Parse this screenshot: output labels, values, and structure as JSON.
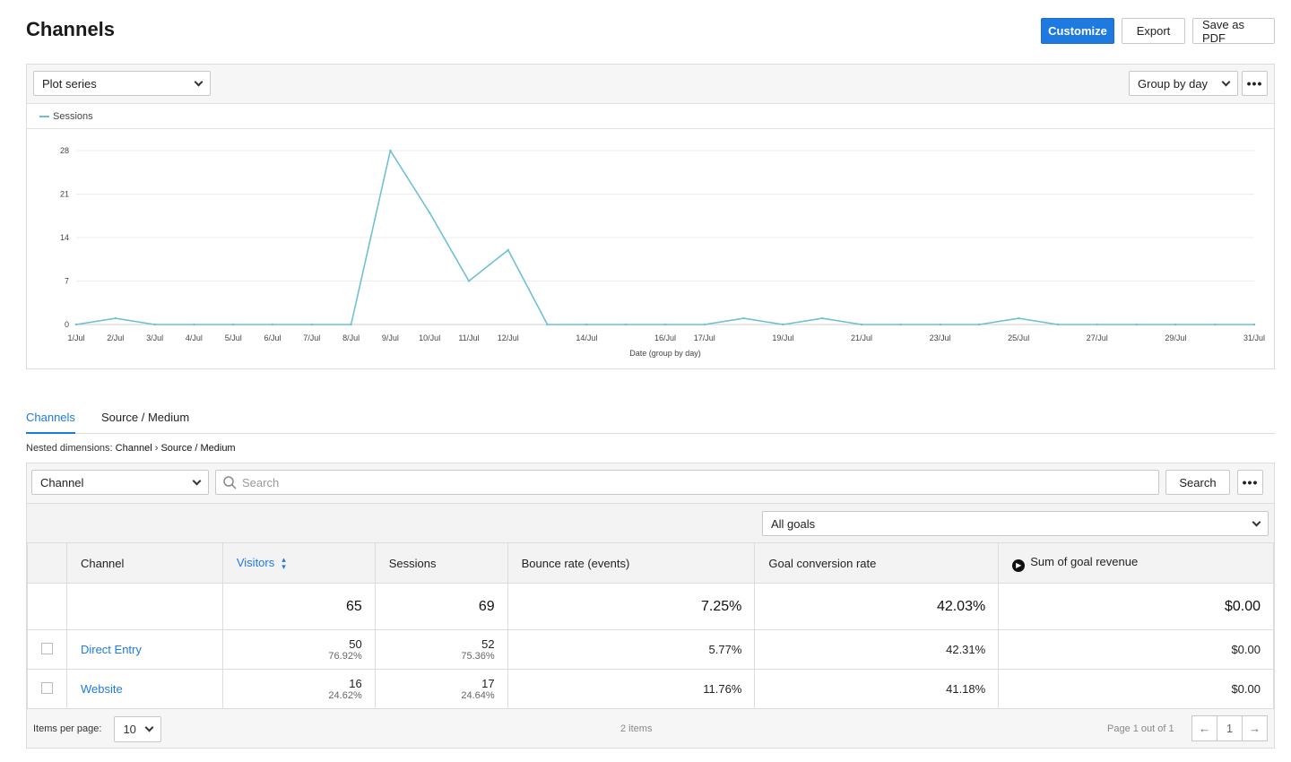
{
  "page": {
    "title": "Channels"
  },
  "actions": {
    "customize": "Customize",
    "export": "Export",
    "save_pdf": "Save as PDF"
  },
  "chart_toolbar": {
    "plot_series": "Plot series",
    "group_by": "Group by day",
    "more": "•••"
  },
  "chart_data": {
    "type": "line",
    "title": "",
    "xlabel": "Date (group by day)",
    "ylabel": "",
    "ylim": [
      0,
      28
    ],
    "yticks": [
      0,
      7,
      14,
      21,
      28
    ],
    "grid": true,
    "legend": "top-left",
    "x": [
      "1/Jul",
      "2/Jul",
      "3/Jul",
      "4/Jul",
      "5/Jul",
      "6/Jul",
      "7/Jul",
      "8/Jul",
      "9/Jul",
      "10/Jul",
      "11/Jul",
      "12/Jul",
      "13/Jul",
      "14/Jul",
      "15/Jul",
      "16/Jul",
      "17/Jul",
      "18/Jul",
      "19/Jul",
      "20/Jul",
      "21/Jul",
      "22/Jul",
      "23/Jul",
      "24/Jul",
      "25/Jul",
      "26/Jul",
      "27/Jul",
      "28/Jul",
      "29/Jul",
      "30/Jul",
      "31/Jul"
    ],
    "xtick_labels": [
      "1/Jul",
      "2/Jul",
      "3/Jul",
      "4/Jul",
      "5/Jul",
      "6/Jul",
      "7/Jul",
      "8/Jul",
      "9/Jul",
      "10/Jul",
      "11/Jul",
      "12/Jul",
      "",
      "14/Jul",
      "",
      "16/Jul",
      "17/Jul",
      "",
      "19/Jul",
      "",
      "21/Jul",
      "",
      "23/Jul",
      "",
      "25/Jul",
      "",
      "27/Jul",
      "",
      "29/Jul",
      "",
      "31/Jul"
    ],
    "series": [
      {
        "name": "Sessions",
        "color": "#6ec1d3",
        "values": [
          0,
          1,
          0,
          0,
          0,
          0,
          0,
          0,
          28,
          18,
          7,
          12,
          0,
          0,
          0,
          0,
          0,
          1,
          0,
          1,
          0,
          0,
          0,
          0,
          1,
          0,
          0,
          0,
          0,
          0,
          0
        ]
      }
    ]
  },
  "tabs": [
    {
      "label": "Channels",
      "active": true
    },
    {
      "label": "Source / Medium",
      "active": false
    }
  ],
  "nested": {
    "prefix": "Nested dimensions:",
    "first": "Channel",
    "sep": "›",
    "second": "Source / Medium"
  },
  "table_toolbar": {
    "dimension": "Channel",
    "search_placeholder": "Search",
    "search_button": "Search",
    "more": "•••"
  },
  "goals_select": "All goals",
  "columns": [
    "Channel",
    "Visitors",
    "Sessions",
    "Bounce rate (events)",
    "Goal conversion rate",
    "Sum of goal revenue"
  ],
  "totals": {
    "visitors": "65",
    "sessions": "69",
    "bounce": "7.25%",
    "goal_conv": "42.03%",
    "revenue": "$0.00"
  },
  "rows": [
    {
      "channel": "Direct Entry",
      "visitors": "50",
      "visitors_pct": "76.92%",
      "sessions": "52",
      "sessions_pct": "75.36%",
      "bounce": "5.77%",
      "goal_conv": "42.31%",
      "revenue": "$0.00"
    },
    {
      "channel": "Website",
      "visitors": "16",
      "visitors_pct": "24.62%",
      "sessions": "17",
      "sessions_pct": "24.64%",
      "bounce": "11.76%",
      "goal_conv": "41.18%",
      "revenue": "$0.00"
    }
  ],
  "footer": {
    "items_per_page_label": "Items per page:",
    "items_per_page": "10",
    "item_count": "2 items",
    "page_info": "Page 1 out of 1",
    "page_num": "1",
    "prev": "←",
    "next": "→"
  }
}
